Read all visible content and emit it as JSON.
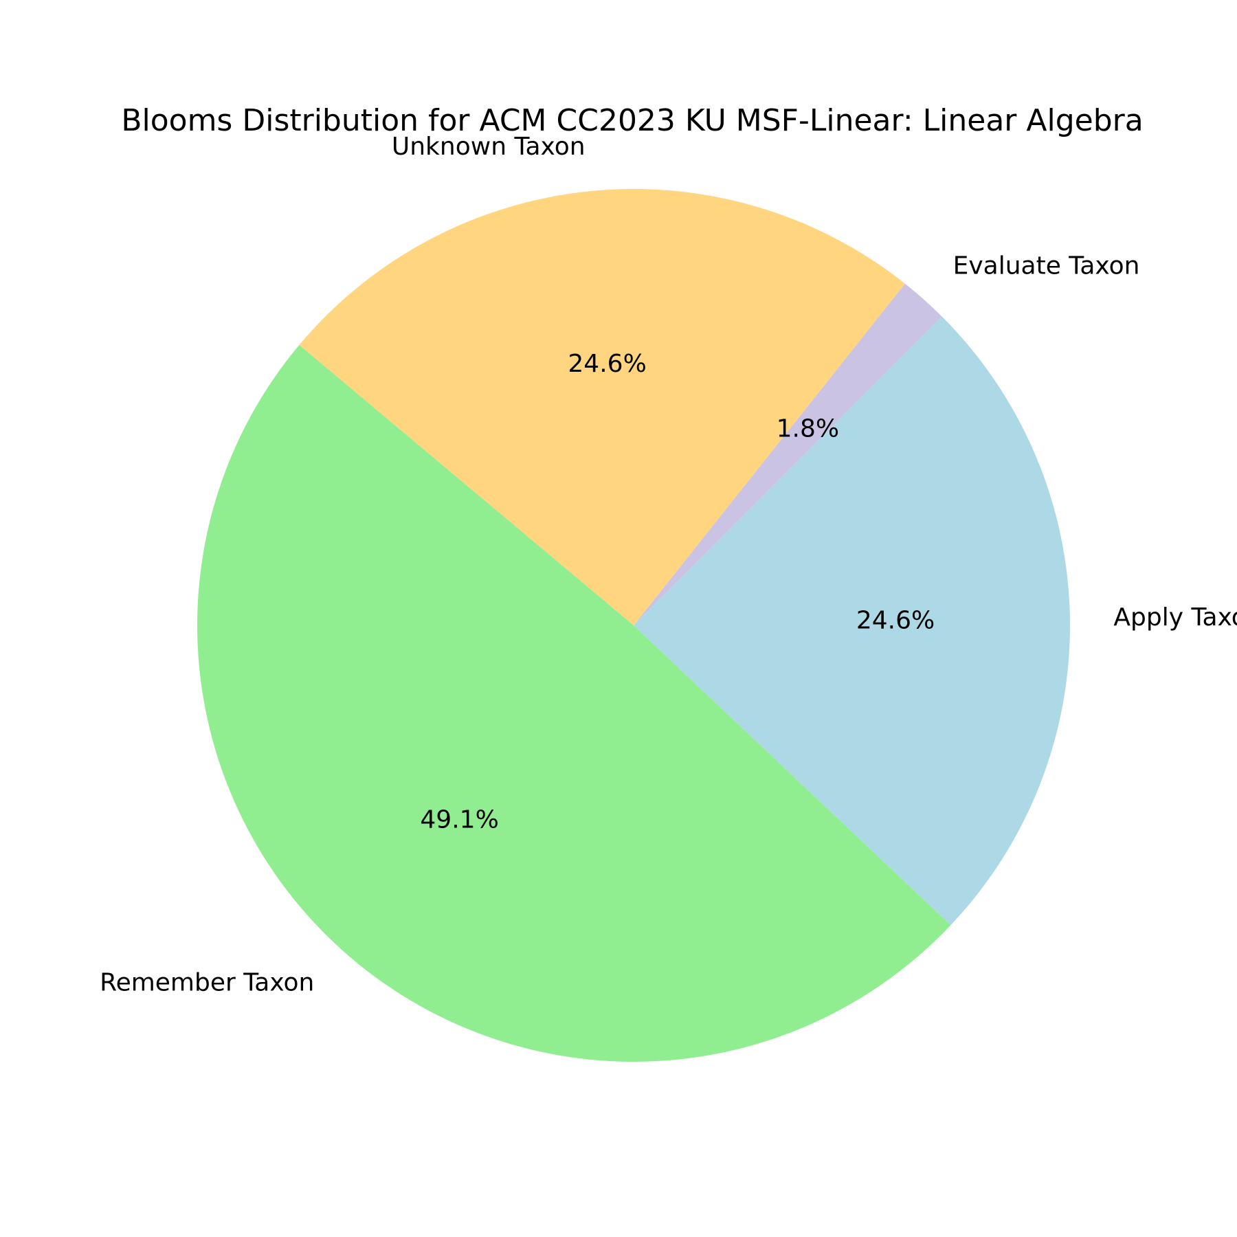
{
  "chart_data": {
    "type": "pie",
    "title": "Blooms Distribution for ACM CC2023 KU MSF-Linear: Linear Algebra",
    "slices": [
      {
        "label": "Apply Taxon",
        "value": 24.6,
        "pct_text": "24.6%",
        "color": "#add8e6"
      },
      {
        "label": "Evaluate Taxon",
        "value": 1.8,
        "pct_text": "1.8%",
        "color": "#cbc3e3"
      },
      {
        "label": "Unknown Taxon",
        "value": 24.6,
        "pct_text": "24.6%",
        "color": "#ffd580"
      },
      {
        "label": "Remember Taxon",
        "value": 49.1,
        "pct_text": "49.1%",
        "color": "#90ee90"
      }
    ],
    "start_angle_deg": -43.4,
    "direction": "counterclockwise"
  }
}
